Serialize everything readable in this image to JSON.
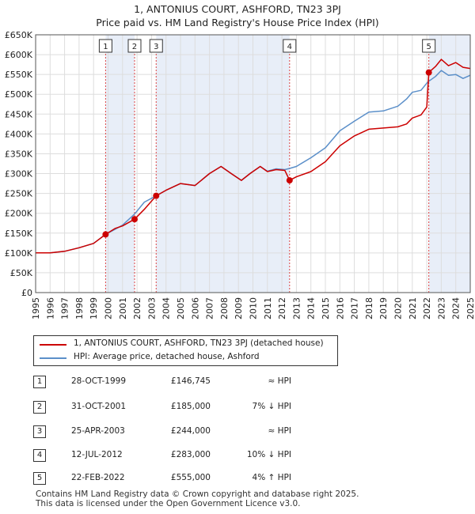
{
  "chart_data": {
    "type": "line",
    "title": "1, ANTONIUS COURT, ASHFORD, TN23 3PJ",
    "subtitle": "Price paid vs. HM Land Registry's House Price Index (HPI)",
    "xlim": [
      1995,
      2025
    ],
    "ylim": [
      0,
      650000
    ],
    "y_ticks": [
      0,
      50000,
      100000,
      150000,
      200000,
      250000,
      300000,
      350000,
      400000,
      450000,
      500000,
      550000,
      600000,
      650000
    ],
    "y_tick_labels": [
      "£0",
      "£50K",
      "£100K",
      "£150K",
      "£200K",
      "£250K",
      "£300K",
      "£350K",
      "£400K",
      "£450K",
      "£500K",
      "£550K",
      "£600K",
      "£650K"
    ],
    "x_ticks": [
      "1995",
      "1996",
      "1997",
      "1998",
      "1999",
      "2000",
      "2001",
      "2002",
      "2003",
      "2004",
      "2005",
      "2006",
      "2007",
      "2008",
      "2009",
      "2010",
      "2011",
      "2012",
      "2013",
      "2014",
      "2015",
      "2016",
      "2017",
      "2018",
      "2019",
      "2020",
      "2021",
      "2022",
      "2023",
      "2024",
      "2025"
    ],
    "grid": true,
    "series": [
      {
        "name": "1, ANTONIUS COURT, ASHFORD, TN23 3PJ (detached house)",
        "color": "#cc0000",
        "points": [
          [
            1995.0,
            100000
          ],
          [
            1996.0,
            100000
          ],
          [
            1997.0,
            104000
          ],
          [
            1998.0,
            113000
          ],
          [
            1999.0,
            124000
          ],
          [
            1999.83,
            146745
          ],
          [
            2000.5,
            162000
          ],
          [
            2001.0,
            168000
          ],
          [
            2001.83,
            185000
          ],
          [
            2002.5,
            210000
          ],
          [
            2003.32,
            244000
          ],
          [
            2004.0,
            258000
          ],
          [
            2005.0,
            275000
          ],
          [
            2006.0,
            270000
          ],
          [
            2007.0,
            300000
          ],
          [
            2007.8,
            318000
          ],
          [
            2008.5,
            300000
          ],
          [
            2009.2,
            283000
          ],
          [
            2009.8,
            300000
          ],
          [
            2010.5,
            318000
          ],
          [
            2011.0,
            305000
          ],
          [
            2011.6,
            310000
          ],
          [
            2012.2,
            308000
          ],
          [
            2012.53,
            283000
          ],
          [
            2013.0,
            292000
          ],
          [
            2014.0,
            305000
          ],
          [
            2015.0,
            330000
          ],
          [
            2016.0,
            370000
          ],
          [
            2017.0,
            395000
          ],
          [
            2018.0,
            412000
          ],
          [
            2019.0,
            415000
          ],
          [
            2020.0,
            418000
          ],
          [
            2020.6,
            425000
          ],
          [
            2021.0,
            440000
          ],
          [
            2021.6,
            448000
          ],
          [
            2022.0,
            468000
          ],
          [
            2022.14,
            555000
          ],
          [
            2022.6,
            570000
          ],
          [
            2023.0,
            588000
          ],
          [
            2023.5,
            572000
          ],
          [
            2024.0,
            580000
          ],
          [
            2024.5,
            568000
          ],
          [
            2025.0,
            565000
          ]
        ]
      },
      {
        "name": "HPI: Average price, detached house, Ashford",
        "color": "#5b8fc9",
        "points": [
          [
            1995.0,
            100000
          ],
          [
            1996.0,
            100000
          ],
          [
            1997.0,
            104000
          ],
          [
            1998.0,
            113000
          ],
          [
            1999.0,
            124000
          ],
          [
            1999.83,
            146745
          ],
          [
            2000.5,
            160000
          ],
          [
            2001.0,
            170000
          ],
          [
            2001.83,
            198000
          ],
          [
            2002.5,
            228000
          ],
          [
            2003.32,
            244000
          ],
          [
            2004.0,
            258000
          ],
          [
            2005.0,
            275000
          ],
          [
            2006.0,
            270000
          ],
          [
            2007.0,
            300000
          ],
          [
            2007.8,
            318000
          ],
          [
            2008.5,
            300000
          ],
          [
            2009.2,
            283000
          ],
          [
            2009.8,
            300000
          ],
          [
            2010.5,
            318000
          ],
          [
            2011.0,
            306000
          ],
          [
            2011.6,
            312000
          ],
          [
            2012.2,
            310000
          ],
          [
            2012.53,
            313000
          ],
          [
            2013.0,
            318000
          ],
          [
            2014.0,
            340000
          ],
          [
            2015.0,
            365000
          ],
          [
            2016.0,
            408000
          ],
          [
            2017.0,
            432000
          ],
          [
            2018.0,
            455000
          ],
          [
            2019.0,
            458000
          ],
          [
            2020.0,
            470000
          ],
          [
            2020.6,
            488000
          ],
          [
            2021.0,
            505000
          ],
          [
            2021.6,
            510000
          ],
          [
            2022.0,
            528000
          ],
          [
            2022.14,
            533000
          ],
          [
            2022.6,
            545000
          ],
          [
            2023.0,
            560000
          ],
          [
            2023.5,
            548000
          ],
          [
            2024.0,
            550000
          ],
          [
            2024.5,
            540000
          ],
          [
            2025.0,
            548000
          ]
        ]
      }
    ],
    "sales": [
      {
        "label": "1",
        "date": "28-OCT-1999",
        "x": 1999.83,
        "price": 146745,
        "price_text": "£146,745",
        "hpi_text": "≈ HPI"
      },
      {
        "label": "2",
        "date": "31-OCT-2001",
        "x": 2001.83,
        "price": 185000,
        "price_text": "£185,000",
        "hpi_text": "7% ↓ HPI"
      },
      {
        "label": "3",
        "date": "25-APR-2003",
        "x": 2003.32,
        "price": 244000,
        "price_text": "£244,000",
        "hpi_text": "≈ HPI"
      },
      {
        "label": "4",
        "date": "12-JUL-2012",
        "x": 2012.53,
        "price": 283000,
        "price_text": "£283,000",
        "hpi_text": "10% ↓ HPI"
      },
      {
        "label": "5",
        "date": "22-FEB-2022",
        "x": 2022.14,
        "price": 555000,
        "price_text": "£555,000",
        "hpi_text": "4% ↑ HPI"
      }
    ],
    "shaded_spans": [
      [
        1999.83,
        2001.83
      ],
      [
        2003.32,
        2012.53
      ],
      [
        2022.14,
        2025.0
      ]
    ]
  },
  "legend": {
    "property_label": "1, ANTONIUS COURT, ASHFORD, TN23 3PJ (detached house)",
    "hpi_label": "HPI: Average price, detached house, Ashford"
  },
  "footer": {
    "line1": "Contains HM Land Registry data © Crown copyright and database right 2025.",
    "line2": "This data is licensed under the Open Government Licence v3.0."
  },
  "colors": {
    "property": "#cc0000",
    "hpi": "#5b8fc9",
    "shade": "#e8eef8",
    "grid": "#dddddd",
    "vline": "#dd4444"
  }
}
